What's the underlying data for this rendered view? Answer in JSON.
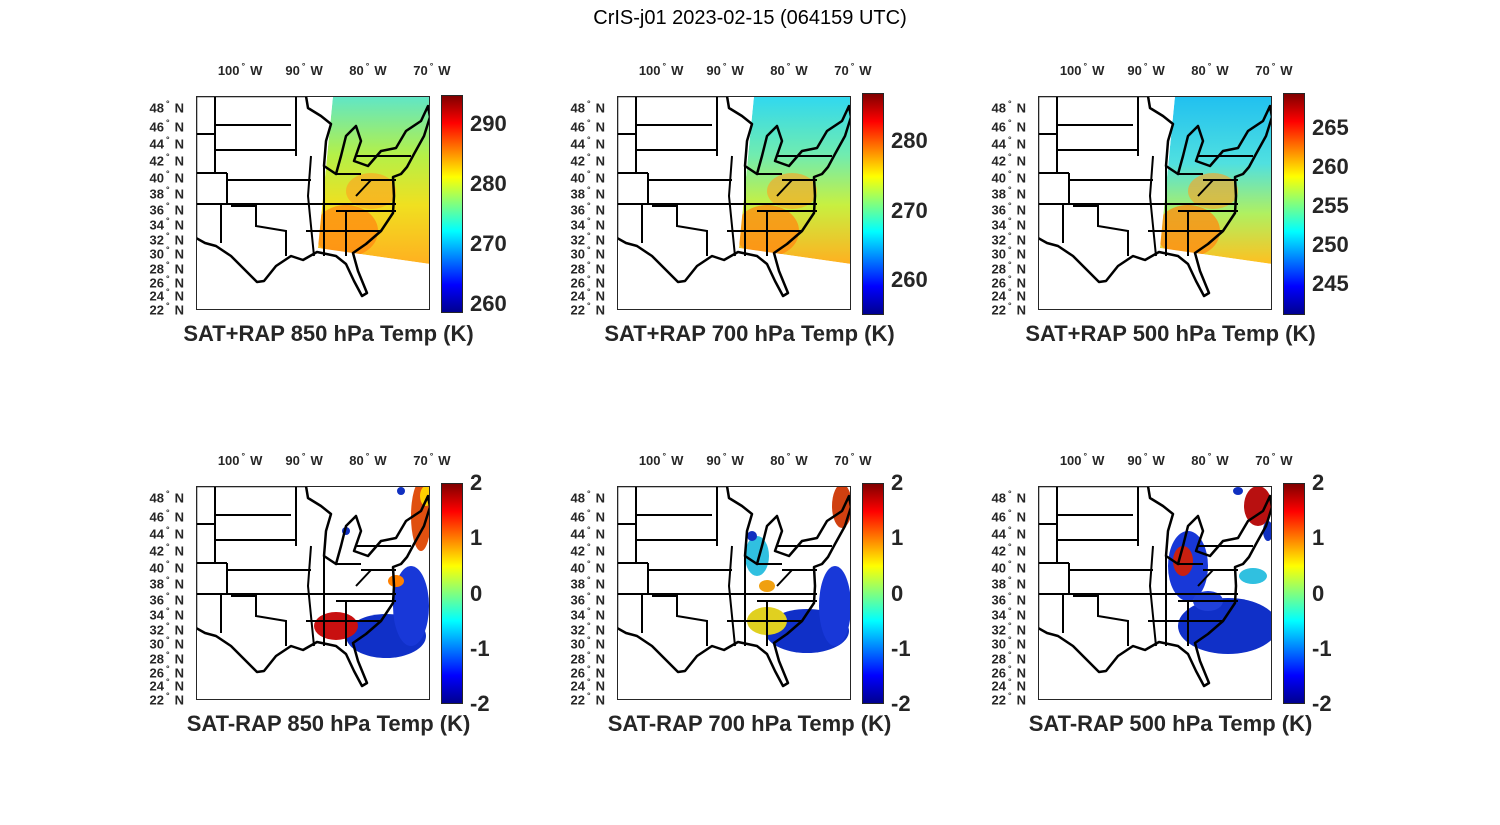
{
  "title": "CrIS-j01 2023-02-15 (064159 UTC)",
  "chart_data": [
    {
      "type": "map",
      "title": "SAT+RAP 850 hPa Temp (K)",
      "lon_ticks": [
        -100,
        -90,
        -80,
        -70
      ],
      "lon_labels": [
        "100",
        "90",
        "80",
        "70"
      ],
      "lon_suffix": "W",
      "lat_ticks": [
        48,
        46,
        44,
        42,
        40,
        38,
        36,
        34,
        32,
        30,
        28,
        26,
        24,
        22
      ],
      "lat_suffix": "N",
      "extent": {
        "lon": [
          -106.9,
          -70.3
        ],
        "lat": [
          22,
          49.3
        ]
      },
      "colorbar": {
        "clim": [
          258.5,
          294.9
        ],
        "ticks": [
          260,
          270,
          280,
          290
        ],
        "colormap": "jet"
      },
      "kind": "total"
    },
    {
      "type": "map",
      "title": "SAT+RAP 700 hPa Temp (K)",
      "lon_ticks": [
        -100,
        -90,
        -80,
        -70
      ],
      "lon_labels": [
        "100",
        "90",
        "80",
        "70"
      ],
      "lon_suffix": "W",
      "lat_ticks": [
        48,
        46,
        44,
        42,
        40,
        38,
        36,
        34,
        32,
        30,
        28,
        26,
        24,
        22
      ],
      "lat_suffix": "N",
      "extent": {
        "lon": [
          -106.9,
          -70.3
        ],
        "lat": [
          22,
          49.3
        ]
      },
      "colorbar": {
        "clim": [
          254.9,
          287
        ],
        "ticks": [
          260,
          270,
          280
        ],
        "colormap": "jet"
      },
      "kind": "total"
    },
    {
      "type": "map",
      "title": "SAT+RAP 500 hPa Temp (K)",
      "lon_ticks": [
        -100,
        -90,
        -80,
        -70
      ],
      "lon_labels": [
        "100",
        "90",
        "80",
        "70"
      ],
      "lon_suffix": "W",
      "lat_ticks": [
        48,
        46,
        44,
        42,
        40,
        38,
        36,
        34,
        32,
        30,
        28,
        26,
        24,
        22
      ],
      "lat_suffix": "N",
      "extent": {
        "lon": [
          -106.9,
          -70.3
        ],
        "lat": [
          22,
          49.3
        ]
      },
      "colorbar": {
        "clim": [
          241.1,
          269.4
        ],
        "ticks": [
          245,
          250,
          255,
          260,
          265
        ],
        "colormap": "jet"
      },
      "kind": "total"
    },
    {
      "type": "map",
      "title": "SAT-RAP 850 hPa Temp (K)",
      "lon_ticks": [
        -100,
        -90,
        -80,
        -70
      ],
      "lon_labels": [
        "100",
        "90",
        "80",
        "70"
      ],
      "lon_suffix": "W",
      "lat_ticks": [
        48,
        46,
        44,
        42,
        40,
        38,
        36,
        34,
        32,
        30,
        28,
        26,
        24,
        22
      ],
      "lat_suffix": "N",
      "extent": {
        "lon": [
          -106.9,
          -70.3
        ],
        "lat": [
          22,
          49.3
        ]
      },
      "colorbar": {
        "clim": [
          -2,
          2
        ],
        "ticks": [
          -2,
          -1,
          0,
          1,
          2
        ],
        "colormap": "jet"
      },
      "kind": "diff"
    },
    {
      "type": "map",
      "title": "SAT-RAP 700 hPa Temp (K)",
      "lon_ticks": [
        -100,
        -90,
        -80,
        -70
      ],
      "lon_labels": [
        "100",
        "90",
        "80",
        "70"
      ],
      "lon_suffix": "W",
      "lat_ticks": [
        48,
        46,
        44,
        42,
        40,
        38,
        36,
        34,
        32,
        30,
        28,
        26,
        24,
        22
      ],
      "lat_suffix": "N",
      "extent": {
        "lon": [
          -106.9,
          -70.3
        ],
        "lat": [
          22,
          49.3
        ]
      },
      "colorbar": {
        "clim": [
          -2,
          2
        ],
        "ticks": [
          -2,
          -1,
          0,
          1,
          2
        ],
        "colormap": "jet"
      },
      "kind": "diff"
    },
    {
      "type": "map",
      "title": "SAT-RAP 500 hPa Temp (K)",
      "lon_ticks": [
        -100,
        -90,
        -80,
        -70
      ],
      "lon_labels": [
        "100",
        "90",
        "80",
        "70"
      ],
      "lon_suffix": "W",
      "lat_ticks": [
        48,
        46,
        44,
        42,
        40,
        38,
        36,
        34,
        32,
        30,
        28,
        26,
        24,
        22
      ],
      "lat_suffix": "N",
      "extent": {
        "lon": [
          -106.9,
          -70.3
        ],
        "lat": [
          22,
          49.3
        ]
      },
      "colorbar": {
        "clim": [
          -2,
          2
        ],
        "ticks": [
          -2,
          -1,
          0,
          1,
          2
        ],
        "colormap": "jet"
      },
      "kind": "diff"
    }
  ]
}
